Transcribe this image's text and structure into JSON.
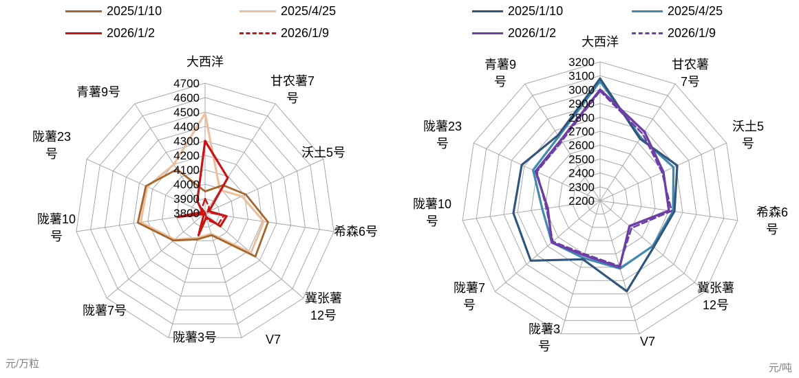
{
  "chart_data": [
    {
      "type": "radar",
      "title": "",
      "unit": "元/万粒",
      "axis_range": [
        3800,
        4700
      ],
      "axis_step": 100,
      "tick_labels": [
        "3800",
        "3900",
        "4000",
        "4100",
        "4200",
        "4300",
        "4400",
        "4500",
        "4600",
        "4700"
      ],
      "grid": true,
      "legend_position": "top",
      "categories": [
        "大西洋",
        "甘农薯7号",
        "沃土5号",
        "希森6号",
        "冀张薯12号",
        "V7",
        "陇薯3号",
        "陇薯7号",
        "陇薯10号",
        "陇薯23号",
        "青薯9号"
      ],
      "category_label_lines": [
        [
          "大西洋"
        ],
        [
          "甘农薯7",
          "号"
        ],
        [
          "沃土5号"
        ],
        [
          "希森6号"
        ],
        [
          "冀张薯",
          "12号"
        ],
        [
          "V7"
        ],
        [
          "陇薯3号"
        ],
        [
          "陇薯7号"
        ],
        [
          "陇薯10",
          "号"
        ],
        [
          "陇薯23",
          "号"
        ],
        [
          "青薯9号"
        ]
      ],
      "series": [
        {
          "name": "2025/1/10",
          "color": "#A5652C",
          "dash": null,
          "values": [
            3950,
            4030,
            4110,
            4240,
            4260,
            3960,
            3990,
            4090,
            4270,
            4250,
            4160
          ]
        },
        {
          "name": "2025/4/25",
          "color": "#EAC09E",
          "dash": null,
          "values": [
            4490,
            3990,
            4080,
            4210,
            4220,
            3950,
            3980,
            4080,
            4250,
            4240,
            4200
          ]
        },
        {
          "name": "2026/1/2",
          "color": "#C91414",
          "dash": null,
          "values": [
            4300,
            4090,
            3830,
            3950,
            3940,
            3830,
            3960,
            3810,
            3990,
            3820,
            3900
          ]
        },
        {
          "name": "2026/1/9",
          "color": "#C91414",
          "dash": "8 5",
          "values": [
            3900,
            3850,
            3820,
            3930,
            3920,
            3850,
            3800,
            3810,
            3870,
            3800,
            3840
          ]
        }
      ]
    },
    {
      "type": "radar",
      "title": "",
      "unit": "元/吨",
      "axis_range": [
        2200,
        3200
      ],
      "axis_step": 100,
      "tick_labels": [
        "2200",
        "2300",
        "2400",
        "2500",
        "2600",
        "2700",
        "2800",
        "2900",
        "3000",
        "3100",
        "3200"
      ],
      "grid": true,
      "legend_position": "top",
      "categories": [
        "大西洋",
        "甘农薯7号",
        "沃土5号",
        "希森6号",
        "冀张薯12号",
        "V7",
        "陇薯3号",
        "陇薯7号",
        "陇薯10号",
        "陇薯23号",
        "青薯9号"
      ],
      "category_label_lines": [
        [
          "大西洋"
        ],
        [
          "甘农薯",
          "7号"
        ],
        [
          "沃土5",
          "号"
        ],
        [
          "希森6",
          "号"
        ],
        [
          "冀张薯",
          "12号"
        ],
        [
          "V7"
        ],
        [
          "陇薯3",
          "号"
        ],
        [
          "陇薯7",
          "号"
        ],
        [
          "陇薯10",
          "号"
        ],
        [
          "陇薯23",
          "号"
        ],
        [
          "青薯9",
          "号"
        ]
      ],
      "series": [
        {
          "name": "2025/1/10",
          "color": "#31567C",
          "dash": null,
          "values": [
            3080,
            2730,
            2810,
            2740,
            2710,
            2880,
            2640,
            2860,
            2830,
            2820,
            2760
          ]
        },
        {
          "name": "2025/4/25",
          "color": "#4189B0",
          "dash": null,
          "values": [
            3060,
            2740,
            2780,
            2730,
            2700,
            2710,
            2630,
            2660,
            2620,
            2730,
            2750
          ]
        },
        {
          "name": "2026/1/2",
          "color": "#6C3FA5",
          "dash": null,
          "values": [
            3000,
            2790,
            2700,
            2700,
            2480,
            2700,
            2610,
            2660,
            2580,
            2710,
            2720
          ]
        },
        {
          "name": "2026/1/9",
          "color": "#6C3FA5",
          "dash": "8 5",
          "values": [
            2990,
            2770,
            2690,
            2720,
            2500,
            2690,
            2600,
            2650,
            2590,
            2700,
            2710
          ]
        }
      ]
    }
  ],
  "grid_color": "#A8A8A8"
}
